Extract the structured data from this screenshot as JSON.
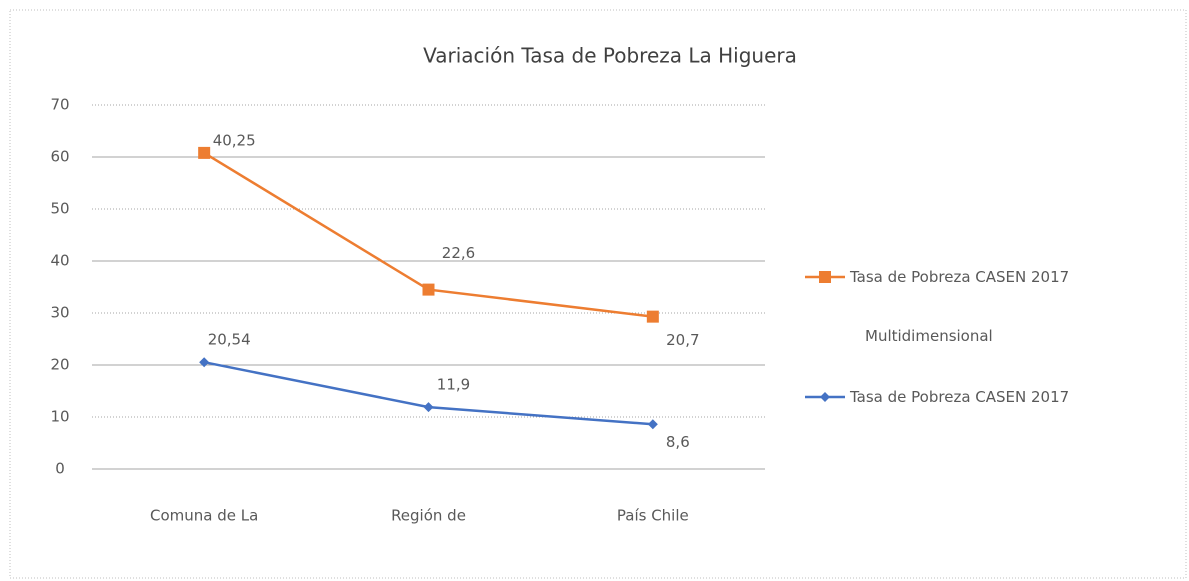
{
  "chart_data": {
    "type": "line",
    "stacked": true,
    "title": "Variación Tasa de Pobreza La Higuera",
    "categories": [
      "Comuna de La",
      "Región de",
      "País Chile"
    ],
    "series": [
      {
        "name": "Tasa de Pobreza CASEN 2017",
        "color": "#4472c4",
        "marker": "diamond",
        "values": [
          20.54,
          11.9,
          8.6
        ],
        "value_labels": [
          "20,54",
          "11,9",
          "8,6"
        ]
      },
      {
        "name": "Tasa de Pobreza CASEN 2017 Multidimensional",
        "color": "#ed7d31",
        "marker": "square",
        "values": [
          40.25,
          22.6,
          20.7
        ],
        "value_labels": [
          "40,25",
          "22,6",
          "20,7"
        ]
      }
    ],
    "ylim": [
      0,
      70
    ],
    "yticks": [
      0,
      10,
      20,
      30,
      40,
      50,
      60,
      70
    ],
    "grid": true,
    "legend": "right"
  }
}
